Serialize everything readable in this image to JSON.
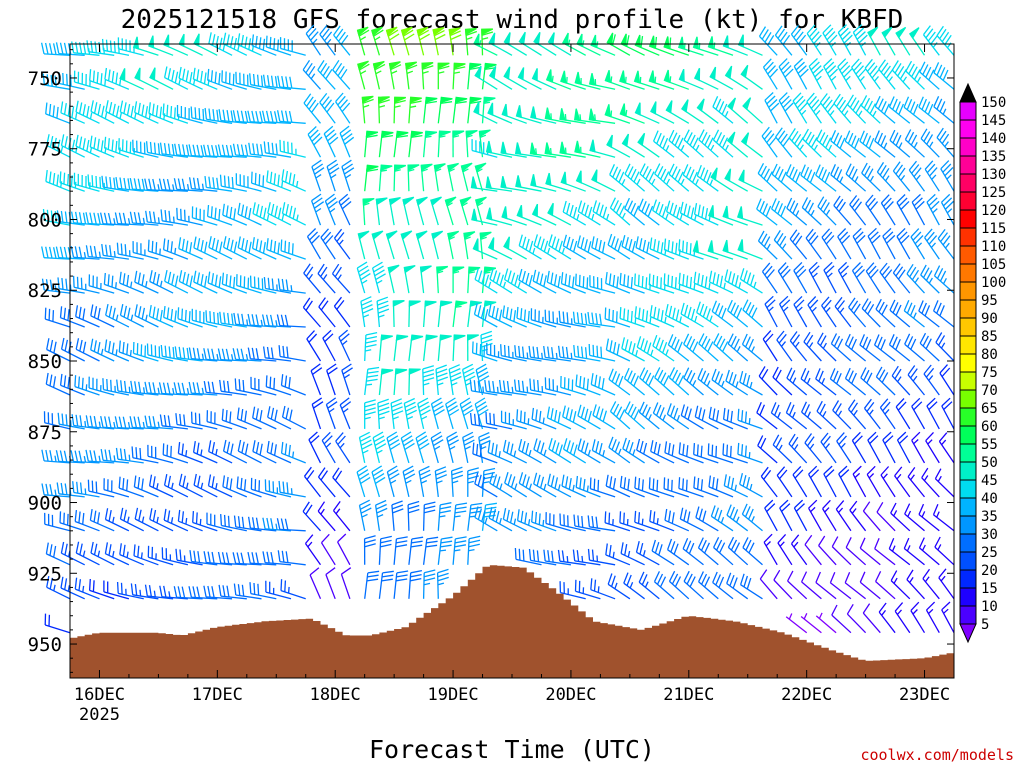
{
  "chart_data": {
    "type": "wind-barb-profile",
    "title": "2025121518 GFS forecast wind profile (kt) for KBFD",
    "xlabel": "Forecast Time (UTC)",
    "ylabel": "",
    "credit": "coolwx.com/models",
    "x_ticks": [
      "16DEC",
      "17DEC",
      "18DEC",
      "19DEC",
      "20DEC",
      "21DEC",
      "22DEC",
      "23DEC"
    ],
    "x_tick_extra": "2025",
    "y_ticks": [
      750,
      775,
      800,
      825,
      850,
      875,
      900,
      925,
      950
    ],
    "y_axis_reversed": true,
    "ylim": [
      738,
      962
    ],
    "xlim_days": [
      15.75,
      23.25
    ],
    "time_step_hours": 3,
    "first_time_day": 15.75,
    "levels_hpa": [
      742,
      754,
      766,
      778,
      790,
      802,
      814,
      826,
      838,
      850,
      862,
      874,
      886,
      898,
      910,
      922,
      934,
      946
    ],
    "colorbar": {
      "unit": "kt",
      "levels": [
        5,
        10,
        15,
        20,
        25,
        30,
        35,
        40,
        45,
        50,
        55,
        60,
        65,
        70,
        75,
        80,
        85,
        90,
        95,
        100,
        105,
        110,
        115,
        120,
        125,
        130,
        135,
        140,
        145,
        150
      ],
      "colors": [
        "#7f00ff",
        "#4b00ff",
        "#1e00ff",
        "#0028ff",
        "#0050ff",
        "#006eff",
        "#0096ff",
        "#00b4ff",
        "#00dcf0",
        "#00f0c8",
        "#00ff96",
        "#00ff5a",
        "#28ff28",
        "#78ff00",
        "#c8ff00",
        "#ffff00",
        "#ffe600",
        "#ffc800",
        "#ffaa00",
        "#ff9600",
        "#ff7800",
        "#ff5a00",
        "#ff3200",
        "#ff0000",
        "#ff0032",
        "#ff0064",
        "#ff0096",
        "#ff00c8",
        "#ff00f0",
        "#e600ff"
      ]
    },
    "wind_phases": [
      {
        "from_day": 15.75,
        "to_day": 17.8,
        "direction_deg": 285,
        "speed_top_kt": 45,
        "speed_bottom_kt": 25
      },
      {
        "from_day": 17.8,
        "to_day": 18.2,
        "direction_deg": 330,
        "speed_top_kt": 40,
        "speed_bottom_kt": 10
      },
      {
        "from_day": 18.2,
        "to_day": 19.3,
        "direction_deg": 355,
        "speed_top_kt": 65,
        "speed_bottom_kt": 30
      },
      {
        "from_day": 19.3,
        "to_day": 20.4,
        "direction_deg": 290,
        "speed_top_kt": 55,
        "speed_bottom_kt": 25
      },
      {
        "from_day": 20.4,
        "to_day": 21.7,
        "direction_deg": 300,
        "speed_top_kt": 55,
        "speed_bottom_kt": 25
      },
      {
        "from_day": 21.7,
        "to_day": 23.25,
        "direction_deg": 320,
        "speed_top_kt": 45,
        "speed_bottom_kt": 10
      }
    ],
    "surface_pressure_hpa": [
      {
        "day": 15.75,
        "p": 948
      },
      {
        "day": 16.0,
        "p": 946
      },
      {
        "day": 16.5,
        "p": 946
      },
      {
        "day": 16.7,
        "p": 947
      },
      {
        "day": 17.0,
        "p": 944
      },
      {
        "day": 17.4,
        "p": 942
      },
      {
        "day": 17.8,
        "p": 941
      },
      {
        "day": 18.1,
        "p": 947
      },
      {
        "day": 18.3,
        "p": 947
      },
      {
        "day": 18.6,
        "p": 944
      },
      {
        "day": 19.0,
        "p": 933
      },
      {
        "day": 19.3,
        "p": 922
      },
      {
        "day": 19.6,
        "p": 923
      },
      {
        "day": 19.9,
        "p": 932
      },
      {
        "day": 20.2,
        "p": 942
      },
      {
        "day": 20.6,
        "p": 945
      },
      {
        "day": 21.0,
        "p": 940
      },
      {
        "day": 21.4,
        "p": 942
      },
      {
        "day": 21.8,
        "p": 946
      },
      {
        "day": 22.2,
        "p": 952
      },
      {
        "day": 22.5,
        "p": 956
      },
      {
        "day": 23.0,
        "p": 955
      },
      {
        "day": 23.25,
        "p": 953
      }
    ],
    "terrain_color": "#a0522d"
  }
}
